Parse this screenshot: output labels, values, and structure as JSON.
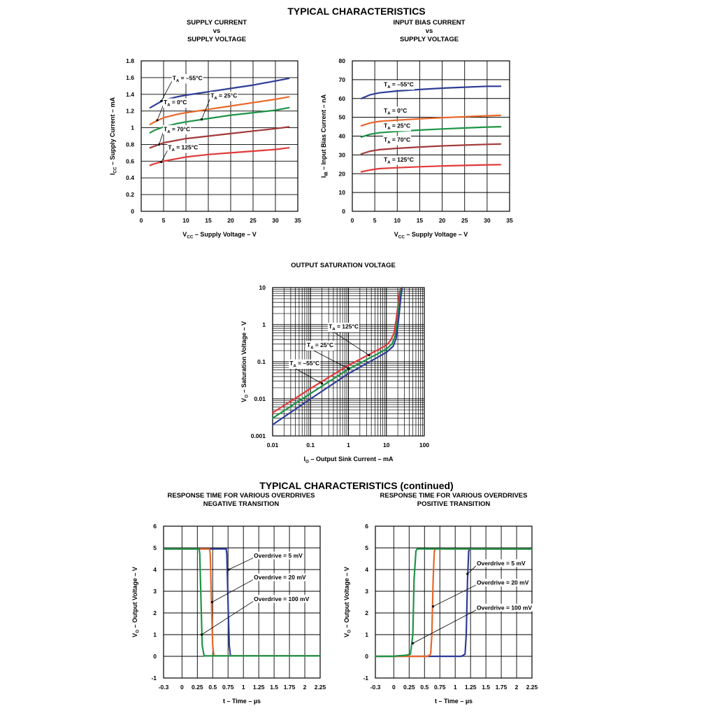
{
  "page": {
    "heading_top": "TYPICAL CHARACTERISTICS",
    "heading_bottom": "TYPICAL CHARACTERISTICS (continued)"
  },
  "chart_data": [
    {
      "type": "line",
      "title_lines": [
        "SUPPLY CURRENT",
        "vs",
        "SUPPLY VOLTAGE"
      ],
      "xlabel": "V_CC – Supply Voltage – V",
      "ylabel": "I_CC – Supply Current – mA",
      "xlim": [
        0,
        35
      ],
      "ylim": [
        0,
        1.8
      ],
      "xticks": [
        0,
        5,
        10,
        15,
        20,
        25,
        30,
        35
      ],
      "yticks": [
        0,
        0.2,
        0.4,
        0.6,
        0.8,
        1,
        1.2,
        1.4,
        1.6,
        1.8
      ],
      "grid": true,
      "series": [
        {
          "name": "T_A = –55°C",
          "color": "#2e3d97",
          "x": [
            2,
            3,
            5,
            8,
            10,
            15,
            20,
            25,
            30,
            33
          ],
          "y": [
            1.24,
            1.27,
            1.33,
            1.37,
            1.39,
            1.43,
            1.47,
            1.51,
            1.56,
            1.59
          ]
        },
        {
          "name": "T_A = 25°C",
          "color": "#e8682a",
          "x": [
            2,
            3,
            5,
            8,
            10,
            15,
            20,
            25,
            30,
            33
          ],
          "y": [
            1.04,
            1.07,
            1.12,
            1.16,
            1.18,
            1.22,
            1.26,
            1.3,
            1.34,
            1.37
          ]
        },
        {
          "name": "T_A = 0°C",
          "color": "#1f9447",
          "x": [
            2,
            3,
            5,
            8,
            10,
            15,
            20,
            25,
            30,
            33
          ],
          "y": [
            0.94,
            0.97,
            1.01,
            1.05,
            1.07,
            1.11,
            1.15,
            1.18,
            1.21,
            1.24
          ]
        },
        {
          "name": "T_A = 70°C",
          "color": "#a33a3a",
          "x": [
            2,
            3,
            5,
            8,
            10,
            15,
            20,
            25,
            30,
            33
          ],
          "y": [
            0.76,
            0.78,
            0.82,
            0.85,
            0.87,
            0.9,
            0.93,
            0.96,
            0.99,
            1.01
          ]
        },
        {
          "name": "T_A = 125°C",
          "color": "#e03a3a",
          "x": [
            2,
            3,
            5,
            8,
            10,
            15,
            20,
            25,
            30,
            33
          ],
          "y": [
            0.55,
            0.57,
            0.6,
            0.63,
            0.65,
            0.68,
            0.7,
            0.72,
            0.74,
            0.76
          ]
        }
      ],
      "annotations": [
        {
          "text": "T_A = –55°C",
          "x": 7,
          "y": 1.57,
          "ax": 4.5,
          "ay": 1.32
        },
        {
          "text": "T_A = 25°C",
          "x": 15.5,
          "y": 1.36,
          "ax": 13.5,
          "ay": 1.1
        },
        {
          "text": "T_A = 0°C",
          "x": 5,
          "y": 1.28,
          "ax": 3.6,
          "ay": 1.09
        },
        {
          "text": "T_A = 70°C",
          "x": 5,
          "y": 0.96,
          "ax": 4,
          "ay": 0.8
        },
        {
          "text": "T_A = 125°C",
          "x": 6,
          "y": 0.74,
          "ax": 4.5,
          "ay": 0.59
        }
      ]
    },
    {
      "type": "line",
      "title_lines": [
        "INPUT BIAS CURRENT",
        "vs",
        "SUPPLY VOLTAGE"
      ],
      "xlabel": "V_CC – Supply Voltage – V",
      "ylabel": "I_IB – Input Bias Current – nA",
      "xlim": [
        0,
        35
      ],
      "ylim": [
        0,
        80
      ],
      "xticks": [
        0,
        5,
        10,
        15,
        20,
        25,
        30,
        35
      ],
      "yticks": [
        0,
        10,
        20,
        30,
        40,
        50,
        60,
        70,
        80
      ],
      "grid": true,
      "series": [
        {
          "name": "T_A = –55°C",
          "color": "#2e3d97",
          "x": [
            2,
            4,
            6,
            10,
            15,
            20,
            25,
            30,
            33
          ],
          "y": [
            60,
            62,
            63,
            64,
            64.8,
            65.5,
            66,
            66.5,
            66.5
          ]
        },
        {
          "name": "T_A = 0°C",
          "color": "#e8682a",
          "x": [
            2,
            4,
            6,
            10,
            15,
            20,
            25,
            30,
            33
          ],
          "y": [
            45.5,
            47,
            47.8,
            48.5,
            49.2,
            49.8,
            50.3,
            50.8,
            51
          ]
        },
        {
          "name": "T_A = 25°C",
          "color": "#1f9447",
          "x": [
            2,
            4,
            6,
            10,
            15,
            20,
            25,
            30,
            33
          ],
          "y": [
            39.5,
            41,
            41.8,
            42.5,
            43.2,
            43.8,
            44.3,
            44.8,
            45
          ]
        },
        {
          "name": "T_A = 70°C",
          "color": "#a33a3a",
          "x": [
            2,
            4,
            6,
            10,
            15,
            20,
            25,
            30,
            33
          ],
          "y": [
            30.5,
            32,
            32.8,
            33.5,
            34.2,
            34.8,
            35.2,
            35.6,
            35.8
          ]
        },
        {
          "name": "T_A = 125°C",
          "color": "#e03a3a",
          "x": [
            2,
            4,
            6,
            10,
            15,
            20,
            25,
            30,
            33
          ],
          "y": [
            21,
            22,
            22.7,
            23.2,
            23.7,
            24.1,
            24.4,
            24.7,
            24.8
          ]
        }
      ],
      "annotations": [
        {
          "text": "T_A = –55°C",
          "x": 7,
          "y": 66.5
        },
        {
          "text": "T_A = 0°C",
          "x": 7,
          "y": 52.5
        },
        {
          "text": "T_A = 25°C",
          "x": 7,
          "y": 44.5
        },
        {
          "text": "T_A = 70°C",
          "x": 7,
          "y": 37
        },
        {
          "text": "T_A = 125°C",
          "x": 7,
          "y": 26.5
        }
      ]
    },
    {
      "type": "line",
      "title_lines": [
        "OUTPUT SATURATION VOLTAGE"
      ],
      "xlabel": "I_O – Output Sink Current – mA",
      "ylabel": "V_O – Saturation Voltage – V",
      "xscale": "log",
      "yscale": "log",
      "xlim": [
        0.01,
        100
      ],
      "ylim": [
        0.001,
        10
      ],
      "xticks": [
        0.01,
        0.1,
        1,
        10,
        100
      ],
      "xticklabels": [
        "0.01",
        "0.1",
        "1",
        "10",
        "100"
      ],
      "yticks": [
        0.001,
        0.01,
        0.1,
        1,
        10
      ],
      "yticklabels": [
        "0.001",
        "0.01",
        "0.1",
        "1",
        "10"
      ],
      "grid": true,
      "series": [
        {
          "name": "T_A = 125°C",
          "color": "#e03a3a",
          "x": [
            0.01,
            0.1,
            1,
            5,
            10,
            13,
            16,
            18,
            20,
            22,
            24
          ],
          "y": [
            0.0042,
            0.019,
            0.08,
            0.19,
            0.28,
            0.38,
            0.6,
            1.3,
            3,
            7,
            10
          ]
        },
        {
          "name": "T_A = 25°C",
          "color": "#1f9447",
          "x": [
            0.01,
            0.1,
            1,
            5,
            10,
            14,
            17,
            19,
            21,
            23,
            25
          ],
          "y": [
            0.003,
            0.014,
            0.063,
            0.15,
            0.22,
            0.3,
            0.5,
            1.0,
            2.5,
            6,
            10
          ]
        },
        {
          "name": "T_A = –55°C",
          "color": "#2e3d97",
          "x": [
            0.01,
            0.1,
            1,
            5,
            10,
            15,
            18,
            20,
            22,
            24,
            26
          ],
          "y": [
            0.002,
            0.01,
            0.048,
            0.12,
            0.18,
            0.26,
            0.42,
            0.9,
            2.2,
            5.5,
            10
          ]
        }
      ],
      "annotations": [
        {
          "text": "T_A = 125°C",
          "x": 0.3,
          "y": 0.78,
          "ax": 3.5,
          "ay": 0.15
        },
        {
          "text": "T_A = 25°C",
          "x": 0.08,
          "y": 0.25,
          "ax": 1,
          "ay": 0.065
        },
        {
          "text": "T_A = –55°C",
          "x": 0.028,
          "y": 0.08,
          "ax": 0.2,
          "ay": 0.026
        }
      ]
    },
    {
      "type": "line",
      "title_lines": [
        "RESPONSE TIME FOR VARIOUS OVERDRIVES",
        "NEGATIVE TRANSITION"
      ],
      "xlabel": "t – Time – µs",
      "ylabel": "V_O – Output Voltage – V",
      "xlim": [
        -0.3,
        2.25
      ],
      "ylim": [
        -1,
        6
      ],
      "xticks": [
        -0.3,
        0,
        0.25,
        0.5,
        0.75,
        1,
        1.25,
        1.5,
        1.75,
        2,
        2.25
      ],
      "xticklabels": [
        "-0.3",
        "0",
        "0.25",
        "0.5",
        "0.75",
        "1",
        "1.25",
        "1.5",
        "1.75",
        "2",
        "2.25"
      ],
      "yticks": [
        -1,
        0,
        1,
        2,
        3,
        4,
        5,
        6
      ],
      "grid": true,
      "series": [
        {
          "name": "Overdrive = 5 mV",
          "color": "#2e3d97",
          "x": [
            -0.3,
            0.72,
            0.73,
            0.75,
            0.77,
            0.79,
            2.25
          ],
          "y": [
            4.95,
            4.95,
            4.7,
            2.5,
            0.5,
            0.02,
            0.02
          ]
        },
        {
          "name": "Overdrive = 20 mV",
          "color": "#e8682a",
          "x": [
            -0.3,
            0.45,
            0.46,
            0.48,
            0.5,
            0.52,
            2.25
          ],
          "y": [
            4.95,
            4.95,
            4.7,
            2.5,
            0.5,
            0.02,
            0.02
          ]
        },
        {
          "name": "Overdrive = 100 mV",
          "color": "#1f9447",
          "x": [
            -0.3,
            0.28,
            0.29,
            0.31,
            0.33,
            0.36,
            2.25
          ],
          "y": [
            4.95,
            4.95,
            4.7,
            2.5,
            0.5,
            0.02,
            0.02
          ]
        }
      ],
      "annotations": [
        {
          "text": "Overdrive = 5 mV",
          "x": 1.17,
          "y": 4.55,
          "ax": 0.76,
          "ay": 4.0
        },
        {
          "text": "Overdrive = 20 mV",
          "x": 1.17,
          "y": 3.55,
          "ax": 0.49,
          "ay": 2.5
        },
        {
          "text": "Overdrive = 100 mV",
          "x": 1.17,
          "y": 2.55,
          "ax": 0.32,
          "ay": 1.0
        }
      ]
    },
    {
      "type": "line",
      "title_lines": [
        "RESPONSE TIME FOR VARIOUS OVERDRIVES",
        "POSITIVE TRANSITION"
      ],
      "xlabel": "t – Time – µs",
      "ylabel": "V_O – Output Voltage – V",
      "xlim": [
        -0.3,
        2.25
      ],
      "ylim": [
        -1,
        6
      ],
      "xticks": [
        -0.3,
        0,
        0.25,
        0.5,
        0.75,
        1,
        1.25,
        1.5,
        1.75,
        2,
        2.25
      ],
      "xticklabels": [
        "-0.3",
        "0",
        "0.25",
        "0.5",
        "0.75",
        "1",
        "1.25",
        "1.5",
        "1.75",
        "2",
        "2.25"
      ],
      "yticks": [
        -1,
        0,
        1,
        2,
        3,
        4,
        5,
        6
      ],
      "grid": true,
      "series": [
        {
          "name": "Overdrive = 5 mV",
          "color": "#2e3d97",
          "x": [
            -0.3,
            1.1,
            1.16,
            1.18,
            1.2,
            1.22,
            1.24,
            2.25
          ],
          "y": [
            0.0,
            0.0,
            0.1,
            1.0,
            3.5,
            4.85,
            4.95,
            4.95
          ]
        },
        {
          "name": "Overdrive = 20 mV",
          "color": "#e8682a",
          "x": [
            -0.3,
            0.55,
            0.6,
            0.62,
            0.64,
            0.66,
            0.68,
            2.25
          ],
          "y": [
            0.0,
            0.0,
            0.1,
            1.0,
            3.5,
            4.85,
            4.95,
            4.95
          ]
        },
        {
          "name": "Overdrive = 100 mV",
          "color": "#1f9447",
          "x": [
            -0.3,
            0.0,
            0.05,
            0.2,
            0.27,
            0.31,
            0.33,
            0.36,
            0.38,
            2.25
          ],
          "y": [
            0.0,
            0.0,
            0.02,
            0.05,
            0.1,
            1.0,
            3.5,
            4.85,
            4.95,
            4.95
          ]
        }
      ],
      "annotations": [
        {
          "text": "Overdrive = 5 mV",
          "x": 1.35,
          "y": 4.2,
          "ax": 1.2,
          "ay": 3.8
        },
        {
          "text": "Overdrive = 20 mV",
          "x": 1.35,
          "y": 3.3,
          "ax": 0.64,
          "ay": 2.3
        },
        {
          "text": "Overdrive = 100 mV",
          "x": 1.35,
          "y": 2.15,
          "ax": 0.31,
          "ay": 0.6
        }
      ]
    }
  ]
}
